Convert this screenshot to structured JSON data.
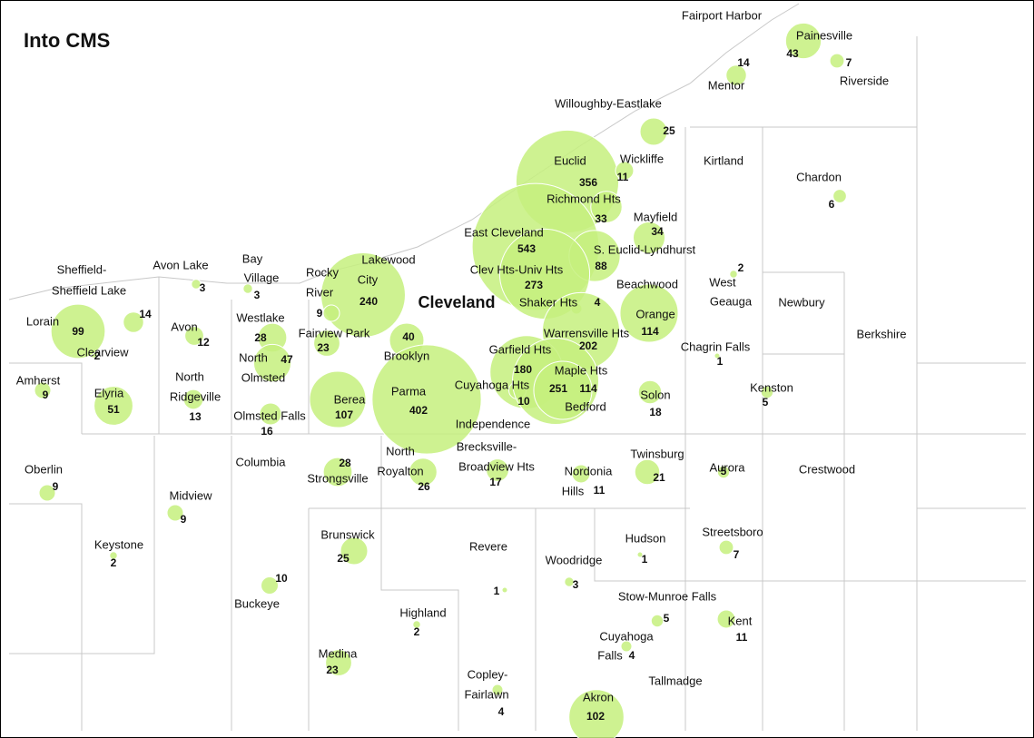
{
  "title": "Into CMS",
  "city": "Cleveland",
  "places": [
    {
      "name": [
        "Fairport Harbor"
      ]
    },
    {
      "name": [
        "Painesville"
      ],
      "value": 43
    },
    {
      "name": [
        "Riverside"
      ],
      "value": 7
    },
    {
      "name": [
        "Mentor"
      ],
      "value": 14
    },
    {
      "name": [
        "Willoughby-Eastlake"
      ],
      "value": 25
    },
    {
      "name": [
        "Kirtland"
      ]
    },
    {
      "name": [
        "Chardon"
      ],
      "value": 6
    },
    {
      "name": [
        "Euclid"
      ],
      "value": 356
    },
    {
      "name": [
        "Wickliffe"
      ],
      "value": 11
    },
    {
      "name": [
        "Richmond Hts"
      ],
      "value": 33
    },
    {
      "name": [
        "Mayfield"
      ],
      "value": 34
    },
    {
      "name": [
        "East Cleveland"
      ],
      "value": 543
    },
    {
      "name": [
        "S. Euclid-Lyndhurst"
      ],
      "value": 88
    },
    {
      "name": [
        "Clev Hts-Univ Hts"
      ],
      "value": 273
    },
    {
      "name": [
        "West",
        "Geauga"
      ],
      "value": 2
    },
    {
      "name": [
        "Beachwood"
      ]
    },
    {
      "name": [
        "Shaker Hts"
      ],
      "value": 4
    },
    {
      "name": [
        "Lakewood",
        "City"
      ],
      "value": 240
    },
    {
      "name": [
        "Rocky",
        "River"
      ],
      "value": 9
    },
    {
      "name": [
        "Bay",
        "Village"
      ],
      "value": 3
    },
    {
      "name": [
        "Avon Lake"
      ],
      "value": 3
    },
    {
      "name": [
        "Sheffield-",
        "Sheffield Lake"
      ],
      "value": 14
    },
    {
      "name": [
        "Clearview"
      ],
      "value": 2
    },
    {
      "name": [
        "Lorain"
      ],
      "value": 99
    },
    {
      "name": [
        "Avon"
      ],
      "value": 12
    },
    {
      "name": [
        "Westlake"
      ],
      "value": 28
    },
    {
      "name": [
        "North",
        "Olmsted"
      ],
      "value": 47
    },
    {
      "name": [
        "Fairview Park"
      ],
      "value": 23
    },
    {
      "name": [
        "Brooklyn"
      ],
      "value": 40
    },
    {
      "name": [
        "Warrensville Hts"
      ],
      "value": 202
    },
    {
      "name": [
        "Orange"
      ],
      "value": 114
    },
    {
      "name": [
        "Chagrin Falls"
      ],
      "value": 1
    },
    {
      "name": [
        "Newbury"
      ]
    },
    {
      "name": [
        "Berkshire"
      ]
    },
    {
      "name": [
        "Amherst"
      ],
      "value": 9
    },
    {
      "name": [
        "Elyria"
      ],
      "value": 51
    },
    {
      "name": [
        "North",
        "Ridgeville"
      ],
      "value": 13
    },
    {
      "name": [
        "Olmsted Falls"
      ],
      "value": 16
    },
    {
      "name": [
        "Berea"
      ],
      "value": 107
    },
    {
      "name": [
        "Parma"
      ],
      "value": 402
    },
    {
      "name": [
        "Garfield Hts"
      ],
      "value": 180
    },
    {
      "name": [
        "Cuyahoga Hts"
      ],
      "value": 10
    },
    {
      "name": [
        "Maple Hts"
      ],
      "value": 251
    },
    {
      "name": [
        "Bedford"
      ],
      "value": 114
    },
    {
      "name": [
        "Independence"
      ]
    },
    {
      "name": [
        "Solon"
      ],
      "value": 18
    },
    {
      "name": [
        "Kenston"
      ],
      "value": 5
    },
    {
      "name": [
        "Oberlin"
      ],
      "value": 9
    },
    {
      "name": [
        "Columbia"
      ]
    },
    {
      "name": [
        "Strongsville"
      ],
      "value": 28
    },
    {
      "name": [
        "North",
        "Royalton"
      ],
      "value": 26
    },
    {
      "name": [
        "Brecksville-",
        "Broadview Hts"
      ],
      "value": 17
    },
    {
      "name": [
        "Nordonia",
        "Hills"
      ],
      "value": 11
    },
    {
      "name": [
        "Twinsburg"
      ],
      "value": 21
    },
    {
      "name": [
        "Aurora"
      ],
      "value": 5
    },
    {
      "name": [
        "Crestwood"
      ]
    },
    {
      "name": [
        "Midview"
      ],
      "value": 9
    },
    {
      "name": [
        "Keystone"
      ],
      "value": 2
    },
    {
      "name": [
        "Brunswick"
      ],
      "value": 25
    },
    {
      "name": [
        "Revere"
      ],
      "value": 1
    },
    {
      "name": [
        "Hudson"
      ],
      "value": 1
    },
    {
      "name": [
        "Streetsboro"
      ],
      "value": 7
    },
    {
      "name": [
        "Woodridge"
      ],
      "value": 3
    },
    {
      "name": [
        "Buckeye"
      ],
      "value": 10
    },
    {
      "name": [
        "Stow-Munroe Falls"
      ],
      "value": 5
    },
    {
      "name": [
        "Kent"
      ],
      "value": 11
    },
    {
      "name": [
        "Highland"
      ],
      "value": 2
    },
    {
      "name": [
        "Cuyahoga",
        "Falls"
      ],
      "value": 4
    },
    {
      "name": [
        "Medina"
      ],
      "value": 23
    },
    {
      "name": [
        "Tallmadge"
      ]
    },
    {
      "name": [
        "Copley-",
        "Fairlawn"
      ],
      "value": 4
    },
    {
      "name": [
        "Akron"
      ],
      "value": 102
    }
  ]
}
